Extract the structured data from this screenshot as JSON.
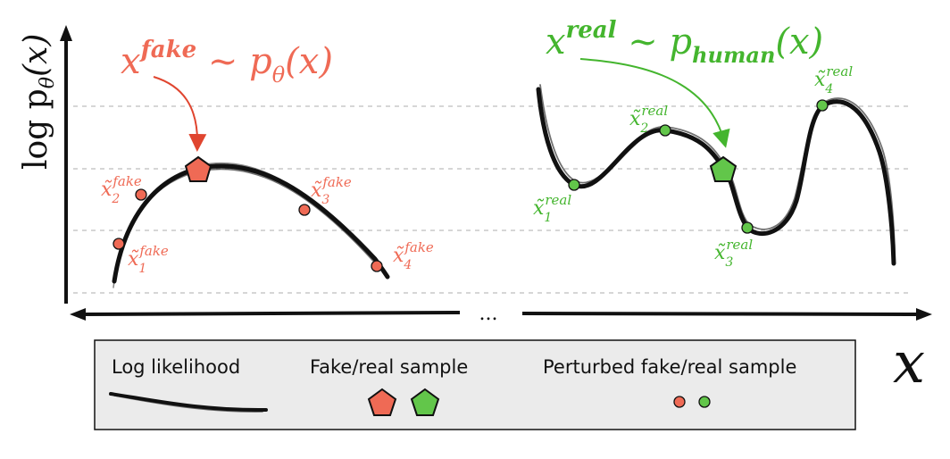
{
  "colors": {
    "fake": "#ef6a55",
    "real": "#62c64a",
    "fake_text": "#ef6a55",
    "real_text": "#44b52e",
    "curve": "#111111",
    "grid": "#c8c8c8",
    "legend_bg": "#ebebeb"
  },
  "axes": {
    "ylabel_prefix": "log p",
    "ylabel_sub": "θ",
    "ylabel_suffix": "(x)",
    "xlabel": "x",
    "ellipsis": "..."
  },
  "left": {
    "title_base": "x",
    "title_sup": "fake",
    "title_rest": " ~ p",
    "title_sub": "θ",
    "title_arg": "(x)",
    "points": [
      {
        "base": "x̃",
        "sub": "1",
        "sup": "fake"
      },
      {
        "base": "x̃",
        "sub": "2",
        "sup": "fake"
      },
      {
        "base": "x̃",
        "sub": "3",
        "sup": "fake"
      },
      {
        "base": "x̃",
        "sub": "4",
        "sup": "fake"
      }
    ]
  },
  "right": {
    "title_base": "x",
    "title_sup": "real",
    "title_rest": " ~ p",
    "title_sub": "human",
    "title_arg": "(x)",
    "points": [
      {
        "base": "x̃",
        "sub": "1",
        "sup": "real"
      },
      {
        "base": "x̃",
        "sub": "2",
        "sup": "real"
      },
      {
        "base": "x̃",
        "sub": "3",
        "sup": "real"
      },
      {
        "base": "x̃",
        "sub": "4",
        "sup": "real"
      }
    ]
  },
  "legend": {
    "log_likelihood": "Log likelihood",
    "sample": "Fake/real sample",
    "perturbed": "Perturbed fake/real sample"
  }
}
